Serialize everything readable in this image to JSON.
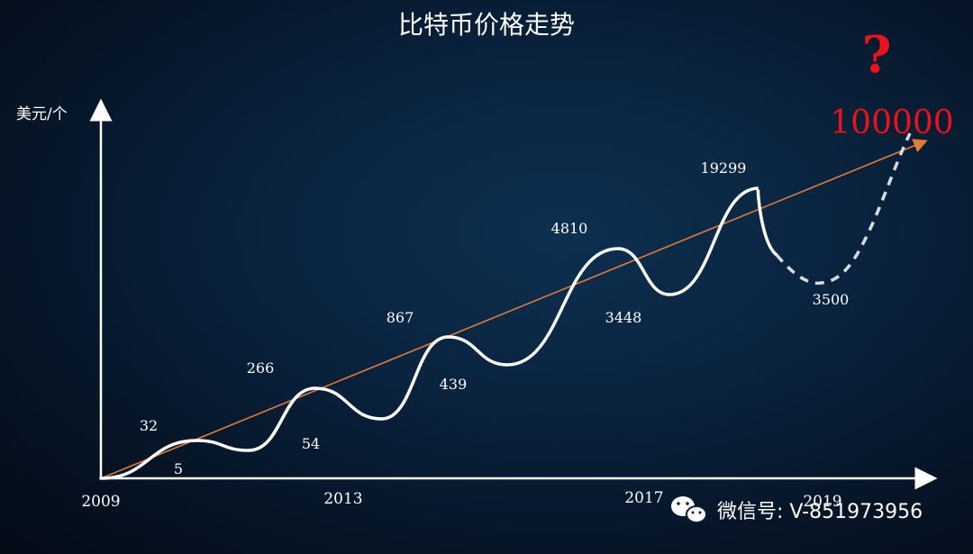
{
  "chart_data": {
    "type": "line",
    "title": "比特币价格走势",
    "ylabel": "美元/个",
    "xlabel": "",
    "x_ticks": [
      "2009",
      "2013",
      "2017",
      "2019"
    ],
    "points": [
      {
        "x": 2009.0,
        "label": ""
      },
      {
        "x": 2010.3,
        "label": "32"
      },
      {
        "x": 2011.0,
        "label": "5"
      },
      {
        "x": 2011.9,
        "label": "266"
      },
      {
        "x": 2012.8,
        "label": "54"
      },
      {
        "x": 2013.7,
        "label": "867"
      },
      {
        "x": 2014.5,
        "label": "439"
      },
      {
        "x": 2016.0,
        "label": "4810"
      },
      {
        "x": 2016.7,
        "label": "3448"
      },
      {
        "x": 2017.9,
        "label": "19299"
      },
      {
        "x": 2018.6,
        "label": "3500"
      },
      {
        "x": 2019.9,
        "label": "100000"
      }
    ],
    "series": [
      {
        "style": "solid",
        "color": "#ffffff"
      },
      {
        "style": "dashed",
        "color": "#d9d9d9"
      },
      {
        "style": "trend",
        "color": "#e07b39"
      }
    ],
    "target_mark": "?",
    "colors": {
      "target": "#e8131b",
      "trend": "#e07b39"
    }
  },
  "watermark": {
    "icon": "wechat-icon",
    "text": "微信号: V-851973956"
  }
}
